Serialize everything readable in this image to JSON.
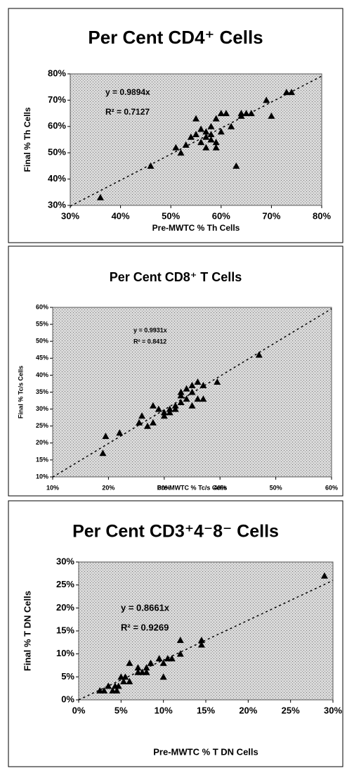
{
  "chart_data": [
    {
      "type": "scatter",
      "title": "Per Cent CD4⁺ Cells",
      "x_label": "Pre-MWTC % Th Cells",
      "y_label": "Final % Th Cells",
      "equation": "y = 0.9894x",
      "r_squared": "R² = 0.7127",
      "trendline_slope": 0.9894,
      "color": "#000000",
      "x": [
        74,
        73,
        69,
        70,
        66,
        65,
        64,
        64,
        62,
        61,
        60,
        60,
        59,
        58,
        58,
        58,
        59,
        57,
        57,
        56,
        56,
        55,
        55,
        54,
        53,
        52,
        51,
        46,
        63,
        36,
        57,
        59
      ],
      "values": [
        73,
        73,
        70,
        64,
        65,
        65,
        64,
        65,
        60,
        65,
        65,
        58,
        63,
        60,
        55,
        57,
        54,
        58,
        56,
        59,
        54,
        63,
        57,
        56,
        53,
        50,
        52,
        45,
        45,
        33,
        52,
        52
      ],
      "xlim": [
        30,
        80
      ],
      "ylim": [
        30,
        80
      ],
      "xticks": [
        {
          "value": 30,
          "label": "30%"
        },
        {
          "value": 40,
          "label": "40%"
        },
        {
          "value": 50,
          "label": "50%"
        },
        {
          "value": 60,
          "label": "60%"
        },
        {
          "value": 70,
          "label": "70%"
        },
        {
          "value": 80,
          "label": "80%"
        }
      ],
      "yticks": [
        {
          "value": 30,
          "label": "30%"
        },
        {
          "value": 40,
          "label": "40%"
        },
        {
          "value": 50,
          "label": "50%"
        },
        {
          "value": 60,
          "label": "60%"
        },
        {
          "value": 70,
          "label": "70%"
        },
        {
          "value": 80,
          "label": "80%"
        }
      ]
    },
    {
      "type": "scatter",
      "title": "Per Cent CD8⁺ T Cells",
      "x_label": "Pre-MWTC % Tc/s Cells",
      "y_label": "Final % Tc/s Cells",
      "equation": "y = 0.9931x",
      "r_squared": "R² = 0.8412",
      "trendline_slope": 0.9931,
      "color": "#000000",
      "x": [
        19,
        19.5,
        22,
        25.5,
        26,
        27,
        28,
        28,
        29,
        30,
        30,
        31,
        31,
        32,
        32,
        33,
        33,
        33,
        34,
        34,
        35,
        35,
        35,
        36,
        36,
        37,
        37,
        39.5,
        47
      ],
      "values": [
        17,
        22,
        23,
        26,
        28,
        25,
        26,
        31,
        30,
        28,
        29,
        30,
        29,
        31,
        30,
        32,
        34,
        35,
        36,
        33,
        31,
        35,
        37,
        38,
        33,
        33,
        37,
        38,
        46
      ],
      "xlim": [
        10,
        60
      ],
      "ylim": [
        10,
        60
      ],
      "xticks": [
        {
          "value": 10,
          "label": "10%"
        },
        {
          "value": 20,
          "label": "20%"
        },
        {
          "value": 30,
          "label": "30%"
        },
        {
          "value": 40,
          "label": "40%"
        },
        {
          "value": 50,
          "label": "50%"
        },
        {
          "value": 60,
          "label": "60%"
        }
      ],
      "yticks": [
        {
          "value": 10,
          "label": "10%"
        },
        {
          "value": 15,
          "label": "15%"
        },
        {
          "value": 20,
          "label": "20%"
        },
        {
          "value": 25,
          "label": "25%"
        },
        {
          "value": 30,
          "label": "30%"
        },
        {
          "value": 35,
          "label": "35%"
        },
        {
          "value": 40,
          "label": "40%"
        },
        {
          "value": 45,
          "label": "45%"
        },
        {
          "value": 50,
          "label": "50%"
        },
        {
          "value": 55,
          "label": "55%"
        },
        {
          "value": 60,
          "label": "60%"
        }
      ]
    },
    {
      "type": "scatter",
      "title": "Per Cent CD3⁺4⁻8⁻ Cells",
      "x_label": "Pre-MWTC % T DN Cells",
      "y_label": "Final % T DN Cells",
      "equation": "y = 0.8661x",
      "r_squared": "R² = 0.9269",
      "trendline_slope": 0.8661,
      "color": "#000000",
      "x": [
        2.5,
        3,
        3.5,
        4,
        4.3,
        4.5,
        4.7,
        5,
        5.3,
        5.5,
        6,
        6,
        7,
        7,
        7.5,
        8,
        8.5,
        8,
        9.5,
        10,
        10,
        10.5,
        11,
        12,
        12,
        14.5,
        14.5,
        29
      ],
      "values": [
        2,
        2,
        3,
        2,
        3,
        2,
        3,
        5,
        4,
        5,
        4,
        8,
        6,
        7,
        6,
        7,
        8,
        6,
        9,
        5,
        8,
        9,
        9,
        10,
        13,
        12,
        13,
        27
      ],
      "xlim": [
        0,
        30
      ],
      "ylim": [
        0,
        30
      ],
      "xticks": [
        {
          "value": 0,
          "label": "0%"
        },
        {
          "value": 5,
          "label": "5%"
        },
        {
          "value": 10,
          "label": "10%"
        },
        {
          "value": 15,
          "label": "15%"
        },
        {
          "value": 20,
          "label": "20%"
        },
        {
          "value": 25,
          "label": "25%"
        },
        {
          "value": 30,
          "label": "30%"
        }
      ],
      "yticks": [
        {
          "value": 0,
          "label": "0%"
        },
        {
          "value": 5,
          "label": "5%"
        },
        {
          "value": 10,
          "label": "10%"
        },
        {
          "value": 15,
          "label": "15%"
        },
        {
          "value": 20,
          "label": "20%"
        },
        {
          "value": 25,
          "label": "25%"
        },
        {
          "value": 30,
          "label": "30%"
        }
      ]
    }
  ]
}
